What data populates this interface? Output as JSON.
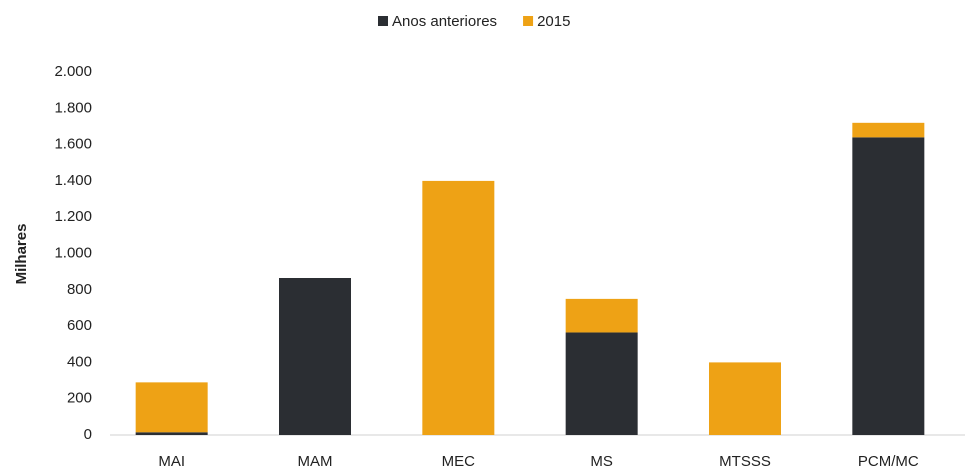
{
  "chart_data": {
    "type": "stacked_bar",
    "y_label": "Milhares",
    "categories": [
      "MAI",
      "MAM",
      "MEC",
      "MS",
      "MTSSS",
      "PCM/MC"
    ],
    "series": [
      {
        "name": "Anos anteriores",
        "color": "#2b2e33",
        "values": [
          15,
          865,
          0,
          565,
          0,
          1640
        ]
      },
      {
        "name": "2015",
        "color": "#eea215",
        "values": [
          275,
          0,
          1400,
          185,
          400,
          80
        ]
      }
    ],
    "ylim": [
      0,
      2000
    ],
    "yticks": [
      0,
      200,
      400,
      600,
      800,
      {
        "value": 1000,
        "label": "1.000"
      },
      {
        "value": 1200,
        "label": "1.200"
      },
      {
        "value": 1400,
        "label": "1.400"
      },
      {
        "value": 1600,
        "label": "1.600"
      },
      {
        "value": 1800,
        "label": "1.800"
      },
      {
        "value": 2000,
        "label": "2.000"
      }
    ],
    "grid": false,
    "legend": "top"
  }
}
